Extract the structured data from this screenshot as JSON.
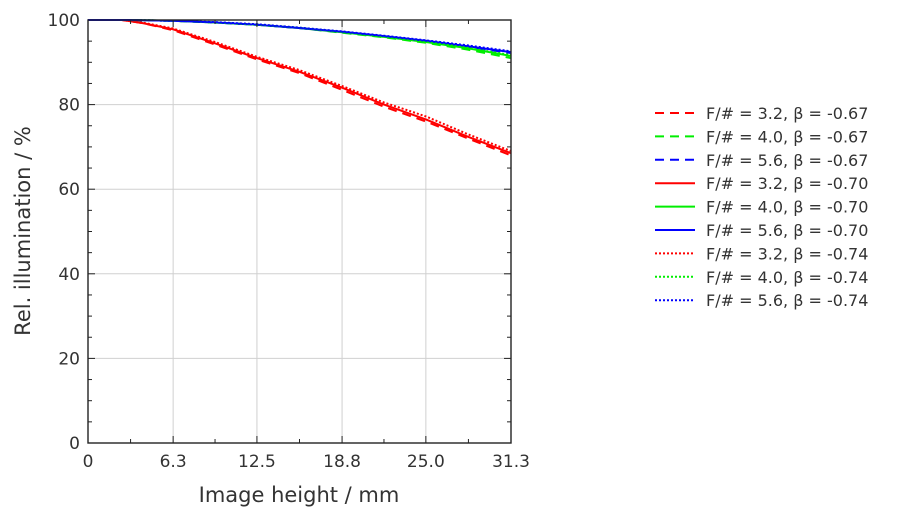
{
  "chart_data": {
    "type": "line",
    "xlabel": "Image height / mm",
    "ylabel": "Rel. illumination / %",
    "xlim": [
      0,
      31.3
    ],
    "ylim": [
      0,
      100
    ],
    "x_ticks": [
      0,
      6.3,
      12.5,
      18.8,
      25.0,
      31.3
    ],
    "x_tick_labels": [
      "0",
      "6.3",
      "12.5",
      "18.8",
      "25.0",
      "31.3"
    ],
    "y_ticks": [
      0,
      20,
      40,
      60,
      80,
      100
    ],
    "y_tick_labels": [
      "0",
      "20",
      "40",
      "60",
      "80",
      "100"
    ],
    "grid": true,
    "legend_position": "right",
    "series": [
      {
        "name": "F/# = 3.2,  β = -0.67",
        "color": "#ff0000",
        "dash": "dashed",
        "x": [
          0,
          2.5,
          4,
          6.3,
          9.4,
          12.5,
          15.6,
          18.8,
          21.9,
          25.0,
          28.1,
          31.3
        ],
        "y": [
          100,
          100,
          99.3,
          97.6,
          94.2,
          90.7,
          87.5,
          83.5,
          79.5,
          76.0,
          72.0,
          68.0
        ]
      },
      {
        "name": "F/# = 4.0,  β = -0.67",
        "color": "#00ee00",
        "dash": "dashed",
        "x": [
          0,
          3,
          6.3,
          9.4,
          12.5,
          15.6,
          18.8,
          21.9,
          25.0,
          28.1,
          31.3
        ],
        "y": [
          100,
          100,
          99.8,
          99.4,
          98.9,
          98.1,
          97.0,
          95.9,
          94.6,
          93.0,
          91.0
        ]
      },
      {
        "name": "F/# = 5.6,  β = -0.67",
        "color": "#0000ff",
        "dash": "dashed",
        "x": [
          0,
          3,
          6.3,
          9.4,
          12.5,
          15.6,
          18.8,
          21.9,
          25.0,
          28.1,
          31.3
        ],
        "y": [
          100,
          100,
          99.8,
          99.4,
          98.9,
          98.1,
          97.1,
          96.1,
          95.0,
          93.6,
          92.2
        ]
      },
      {
        "name": "F/# = 3.2,  β = -0.70",
        "color": "#ff0000",
        "dash": "solid",
        "x": [
          0,
          2.5,
          4,
          6.3,
          9.4,
          12.5,
          15.6,
          18.8,
          21.9,
          25.0,
          28.1,
          31.3
        ],
        "y": [
          100,
          100,
          99.3,
          97.8,
          94.5,
          91.0,
          87.8,
          84.0,
          80.0,
          76.5,
          72.4,
          68.5
        ]
      },
      {
        "name": "F/# = 4.0,  β = -0.70",
        "color": "#00ee00",
        "dash": "solid",
        "x": [
          0,
          3,
          6.3,
          9.4,
          12.5,
          15.6,
          18.8,
          21.9,
          25.0,
          28.1,
          31.3
        ],
        "y": [
          100,
          100,
          99.8,
          99.4,
          98.9,
          98.1,
          97.1,
          96.0,
          94.8,
          93.3,
          91.5
        ]
      },
      {
        "name": "F/# = 5.6,  β = -0.70",
        "color": "#0000ff",
        "dash": "solid",
        "x": [
          0,
          3,
          6.3,
          9.4,
          12.5,
          15.6,
          18.8,
          21.9,
          25.0,
          28.1,
          31.3
        ],
        "y": [
          100,
          100,
          99.8,
          99.4,
          98.9,
          98.1,
          97.2,
          96.2,
          95.1,
          93.8,
          92.4
        ]
      },
      {
        "name": "F/# = 3.2,  β = -0.74",
        "color": "#ff0000",
        "dash": "dotted",
        "x": [
          0,
          2.5,
          4,
          6.3,
          9.4,
          12.5,
          15.6,
          18.8,
          21.9,
          25.0,
          28.1,
          31.3
        ],
        "y": [
          100,
          100,
          99.4,
          98.0,
          94.8,
          91.3,
          88.2,
          84.4,
          80.5,
          77.2,
          73.0,
          69.0
        ]
      },
      {
        "name": "F/# = 4.0,  β = -0.74",
        "color": "#00ee00",
        "dash": "dotted",
        "x": [
          0,
          3,
          6.3,
          9.4,
          12.5,
          15.6,
          18.8,
          21.9,
          25.0,
          28.1,
          31.3
        ],
        "y": [
          100,
          100,
          99.8,
          99.4,
          98.9,
          98.2,
          97.2,
          96.1,
          94.9,
          93.4,
          91.7
        ]
      },
      {
        "name": "F/# = 5.6,  β = -0.74",
        "color": "#0000ff",
        "dash": "dotted",
        "x": [
          0,
          3,
          6.3,
          9.4,
          12.5,
          15.6,
          18.8,
          21.9,
          25.0,
          28.1,
          31.3
        ],
        "y": [
          100,
          100,
          99.8,
          99.5,
          99.0,
          98.2,
          97.3,
          96.3,
          95.2,
          94.0,
          92.6
        ]
      }
    ]
  }
}
